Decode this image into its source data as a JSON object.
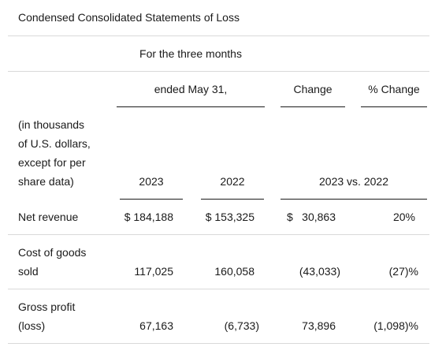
{
  "title": "Condensed Consolidated Statements of Loss",
  "header": {
    "period_line1": "For the three months",
    "period_line2": "ended May 31,",
    "change": "Change",
    "pct_change": "% Change",
    "units": [
      "(in thousands",
      "of U.S. dollars,",
      "except for per",
      "share data)"
    ],
    "year_2023": "2023",
    "year_2022": "2022",
    "comparison": "2023 vs. 2022"
  },
  "rows": [
    {
      "label_lines": [
        "Net revenue"
      ],
      "v2023": "$ 184,188",
      "v2022": "$ 153,325",
      "change_symbol": "$",
      "change": "30,863",
      "pct": "20%"
    },
    {
      "label_lines": [
        "Cost of goods",
        "sold"
      ],
      "v2023": "117,025",
      "v2022": "160,058",
      "change_symbol": "",
      "change": "(43,033)",
      "pct": "(27)%"
    },
    {
      "label_lines": [
        "Gross profit",
        "(loss)"
      ],
      "v2023": "67,163",
      "v2022": "(6,733)",
      "change_symbol": "",
      "change": "73,896",
      "pct": "(1,098)%"
    }
  ]
}
